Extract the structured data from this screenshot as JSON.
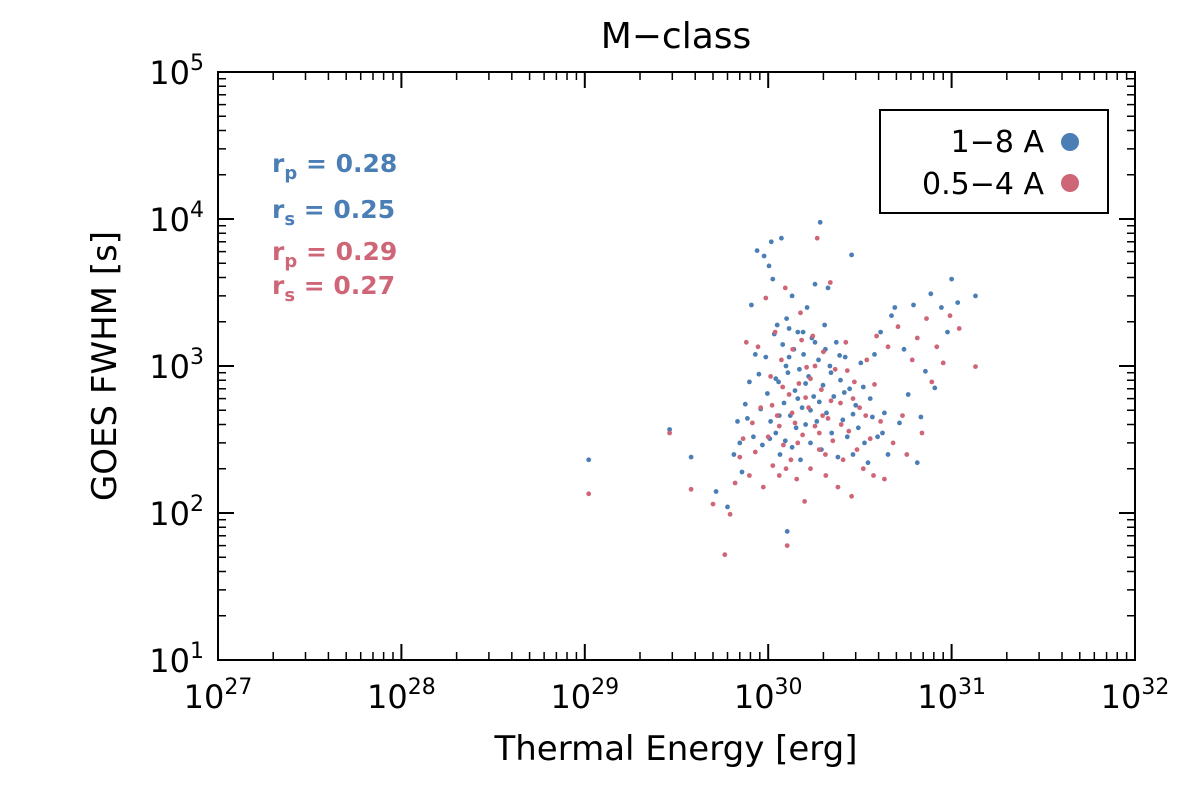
{
  "chart_data": {
    "type": "scatter",
    "title": "M−class",
    "xlabel": "Thermal Energy [erg]",
    "ylabel": "GOES FWHM [s]",
    "xscale": "log",
    "yscale": "log",
    "xlim": [
      1e+27,
      1e+32
    ],
    "ylim": [
      10,
      100000
    ],
    "x_ticks": [
      {
        "base": "10",
        "exp": "27",
        "value": 1e+27
      },
      {
        "base": "10",
        "exp": "28",
        "value": 1e+28
      },
      {
        "base": "10",
        "exp": "29",
        "value": 1e+29
      },
      {
        "base": "10",
        "exp": "30",
        "value": 1e+30
      },
      {
        "base": "10",
        "exp": "31",
        "value": 1e+31
      },
      {
        "base": "10",
        "exp": "32",
        "value": 1e+32
      }
    ],
    "y_ticks": [
      {
        "base": "10",
        "exp": "1",
        "value": 10
      },
      {
        "base": "10",
        "exp": "2",
        "value": 100
      },
      {
        "base": "10",
        "exp": "3",
        "value": 1000
      },
      {
        "base": "10",
        "exp": "4",
        "value": 10000
      },
      {
        "base": "10",
        "exp": "5",
        "value": 100000
      }
    ],
    "legend_position": "top-right",
    "series": [
      {
        "name": "1−8 A",
        "color": "#4a7eb5",
        "stats": [
          {
            "symbol": "r",
            "subscript": "p",
            "text": " = 0.28"
          },
          {
            "symbol": "r",
            "subscript": "s",
            "text": " = 0.25"
          }
        ],
        "points": [
          [
            1.05e+29,
            230
          ],
          [
            2.9e+29,
            370
          ],
          [
            3.8e+29,
            240
          ],
          [
            5.2e+29,
            140
          ],
          [
            6e+29,
            110
          ],
          [
            6.5e+29,
            250
          ],
          [
            6.8e+29,
            420
          ],
          [
            7e+29,
            300
          ],
          [
            7.2e+29,
            190
          ],
          [
            7.5e+29,
            550
          ],
          [
            7.7e+29,
            440
          ],
          [
            7.9e+29,
            780
          ],
          [
            8.1e+29,
            2600
          ],
          [
            8.3e+29,
            330
          ],
          [
            8.5e+29,
            1200
          ],
          [
            8.7e+29,
            6100
          ],
          [
            8.9e+29,
            880
          ],
          [
            9.1e+29,
            510
          ],
          [
            9.3e+29,
            290
          ],
          [
            9.5e+29,
            5600
          ],
          [
            9.7e+29,
            1150
          ],
          [
            9.9e+29,
            650
          ],
          [
            1.01e+30,
            4800
          ],
          [
            1.03e+30,
            420
          ],
          [
            1.04e+30,
            7000
          ],
          [
            1.06e+30,
            3900
          ],
          [
            1.08e+30,
            1650
          ],
          [
            1.1e+30,
            350
          ],
          [
            1.12e+30,
            1900
          ],
          [
            1.14e+30,
            780
          ],
          [
            1.16e+30,
            250
          ],
          [
            1.18e+30,
            7400
          ],
          [
            1.2e+30,
            1400
          ],
          [
            1.22e+30,
            560
          ],
          [
            1.24e+30,
            310
          ],
          [
            1.26e+30,
            2100
          ],
          [
            1.27e+30,
            75
          ],
          [
            1.28e+30,
            900
          ],
          [
            1.3e+30,
            1800
          ],
          [
            1.32e+30,
            460
          ],
          [
            1.35e+30,
            3000
          ],
          [
            1.38e+30,
            1300
          ],
          [
            1.4e+30,
            680
          ],
          [
            1.42e+30,
            380
          ],
          [
            1.45e+30,
            1700
          ],
          [
            1.48e+30,
            950
          ],
          [
            1.5e+30,
            230
          ],
          [
            1.53e+30,
            520
          ],
          [
            1.56e+30,
            1200
          ],
          [
            1.6e+30,
            400
          ],
          [
            1.63e+30,
            2500
          ],
          [
            1.66e+30,
            850
          ],
          [
            1.7e+30,
            300
          ],
          [
            1.73e+30,
            1550
          ],
          [
            1.77e+30,
            620
          ],
          [
            1.8e+30,
            3600
          ],
          [
            1.84e+30,
            420
          ],
          [
            1.88e+30,
            1100
          ],
          [
            1.92e+30,
            9500
          ],
          [
            1.95e+30,
            270
          ],
          [
            1.99e+30,
            740
          ],
          [
            2.03e+30,
            1900
          ],
          [
            2.08e+30,
            480
          ],
          [
            2.12e+30,
            3400
          ],
          [
            2.17e+30,
            1000
          ],
          [
            2.22e+30,
            350
          ],
          [
            2.28e+30,
            620
          ],
          [
            2.35e+30,
            1450
          ],
          [
            2.4e+30,
            240
          ],
          [
            2.48e+30,
            800
          ],
          [
            2.55e+30,
            430
          ],
          [
            2.63e+30,
            1150
          ],
          [
            2.7e+30,
            330
          ],
          [
            2.78e+30,
            700
          ],
          [
            2.85e+30,
            5700
          ],
          [
            2.9e+30,
            250
          ],
          [
            3e+30,
            540
          ],
          [
            3.1e+30,
            380
          ],
          [
            3.2e+30,
            1050
          ],
          [
            3.35e+30,
            300
          ],
          [
            3.5e+30,
            220
          ],
          [
            3.7e+30,
            450
          ],
          [
            3.8e+30,
            1200
          ],
          [
            3.95e+30,
            330
          ],
          [
            4.1e+30,
            1700
          ],
          [
            4.3e+30,
            480
          ],
          [
            4.5e+30,
            250
          ],
          [
            4.7e+30,
            2200
          ],
          [
            4.9e+30,
            2500
          ],
          [
            5.2e+30,
            410
          ],
          [
            5.5e+30,
            1300
          ],
          [
            5.8e+30,
            640
          ],
          [
            6.2e+30,
            2600
          ],
          [
            6.5e+30,
            220
          ],
          [
            6.8e+30,
            450
          ],
          [
            7.2e+30,
            920
          ],
          [
            7.7e+30,
            3100
          ],
          [
            8.1e+30,
            710
          ],
          [
            8.8e+30,
            2500
          ],
          [
            9.5e+30,
            1700
          ],
          [
            1e+31,
            3900
          ],
          [
            1.08e+31,
            2700
          ],
          [
            1.35e+31,
            3000
          ],
          [
            1.55e+30,
            1700
          ],
          [
            1.25e+30,
            1000
          ],
          [
            1.45e+30,
            600
          ],
          [
            2.05e+30,
            1300
          ],
          [
            1.7e+30,
            500
          ],
          [
            1.15e+30,
            460
          ],
          [
            1.35e+30,
            280
          ],
          [
            2.2e+30,
            900
          ],
          [
            2.6e+30,
            660
          ],
          [
            1.1e+30,
            820
          ],
          [
            1.6e+30,
            760
          ],
          [
            1.9e+30,
            570
          ],
          [
            3.3e+30,
            720
          ],
          [
            2.45e+30,
            1180
          ],
          [
            1.02e+30,
            320
          ],
          [
            1.8e+30,
            1450
          ],
          [
            1.3e+30,
            1150
          ],
          [
            3.6e+30,
            600
          ],
          [
            2.9e+30,
            470
          ],
          [
            4.2e+30,
            350
          ]
        ]
      },
      {
        "name": "0.5−4 A",
        "color": "#cf6677",
        "stats": [
          {
            "symbol": "r",
            "subscript": "p",
            "text": " = 0.29"
          },
          {
            "symbol": "r",
            "subscript": "s",
            "text": " = 0.27"
          }
        ],
        "points": [
          [
            1.05e+29,
            135
          ],
          [
            2.9e+29,
            350
          ],
          [
            3.8e+29,
            145
          ],
          [
            5e+29,
            115
          ],
          [
            5.8e+29,
            52
          ],
          [
            6.2e+29,
            98
          ],
          [
            6.6e+29,
            160
          ],
          [
            7e+29,
            240
          ],
          [
            7.3e+29,
            320
          ],
          [
            7.6e+29,
            1450
          ],
          [
            7.9e+29,
            180
          ],
          [
            8.2e+29,
            410
          ],
          [
            8.5e+29,
            260
          ],
          [
            8.8e+29,
            1350
          ],
          [
            9.1e+29,
            520
          ],
          [
            9.4e+29,
            150
          ],
          [
            9.7e+29,
            2900
          ],
          [
            1e+30,
            330
          ],
          [
            1.03e+30,
            850
          ],
          [
            1.06e+30,
            210
          ],
          [
            1.09e+30,
            1700
          ],
          [
            1.12e+30,
            460
          ],
          [
            1.15e+30,
            180
          ],
          [
            1.18e+30,
            1100
          ],
          [
            1.21e+30,
            290
          ],
          [
            1.24e+30,
            3400
          ],
          [
            1.27e+30,
            60
          ],
          [
            1.3e+30,
            640
          ],
          [
            1.33e+30,
            230
          ],
          [
            1.36e+30,
            1300
          ],
          [
            1.4e+30,
            410
          ],
          [
            1.43e+30,
            170
          ],
          [
            1.47e+30,
            760
          ],
          [
            1.5e+30,
            2300
          ],
          [
            1.54e+30,
            340
          ],
          [
            1.58e+30,
            120
          ],
          [
            1.62e+30,
            980
          ],
          [
            1.66e+30,
            520
          ],
          [
            1.7e+30,
            200
          ],
          [
            1.75e+30,
            1600
          ],
          [
            1.8e+30,
            390
          ],
          [
            1.85e+30,
            7400
          ],
          [
            1.9e+30,
            270
          ],
          [
            1.95e+30,
            690
          ],
          [
            2e+30,
            1250
          ],
          [
            2.06e+30,
            180
          ],
          [
            2.12e+30,
            440
          ],
          [
            2.18e+30,
            3700
          ],
          [
            2.25e+30,
            310
          ],
          [
            2.32e+30,
            950
          ],
          [
            2.4e+30,
            150
          ],
          [
            2.48e+30,
            560
          ],
          [
            2.56e+30,
            230
          ],
          [
            2.65e+30,
            1450
          ],
          [
            2.75e+30,
            360
          ],
          [
            2.85e+30,
            130
          ],
          [
            2.95e+30,
            780
          ],
          [
            3.05e+30,
            270
          ],
          [
            3.15e+30,
            520
          ],
          [
            3.3e+30,
            200
          ],
          [
            3.45e+30,
            1100
          ],
          [
            3.6e+30,
            320
          ],
          [
            3.75e+30,
            180
          ],
          [
            3.9e+30,
            1600
          ],
          [
            4.1e+30,
            420
          ],
          [
            4.3e+30,
            170
          ],
          [
            4.5e+30,
            1350
          ],
          [
            4.8e+30,
            300
          ],
          [
            5.1e+30,
            1850
          ],
          [
            5.4e+30,
            460
          ],
          [
            5.7e+30,
            250
          ],
          [
            6.1e+30,
            1100
          ],
          [
            6.5e+30,
            1550
          ],
          [
            6.9e+30,
            350
          ],
          [
            7.3e+30,
            2100
          ],
          [
            7.8e+30,
            780
          ],
          [
            8.3e+30,
            1350
          ],
          [
            9e+30,
            1050
          ],
          [
            9.8e+30,
            2200
          ],
          [
            1.1e+31,
            1800
          ],
          [
            1.35e+31,
            990
          ],
          [
            1.2e+30,
            720
          ],
          [
            1.35e+30,
            480
          ],
          [
            1.6e+30,
            610
          ],
          [
            1.9e+30,
            350
          ],
          [
            2.2e+30,
            580
          ],
          [
            1.05e+30,
            540
          ],
          [
            1.45e+30,
            300
          ],
          [
            1.7e+30,
            820
          ],
          [
            2.5e+30,
            400
          ],
          [
            2.9e+30,
            600
          ],
          [
            3.4e+30,
            460
          ],
          [
            1.15e+30,
            390
          ],
          [
            1.8e+30,
            1000
          ],
          [
            2.05e+30,
            250
          ],
          [
            1.25e+30,
            200
          ],
          [
            2.7e+30,
            930
          ],
          [
            3.8e+30,
            750
          ],
          [
            1.52e+30,
            1500
          ],
          [
            1.98e+30,
            460
          ]
        ]
      }
    ]
  }
}
